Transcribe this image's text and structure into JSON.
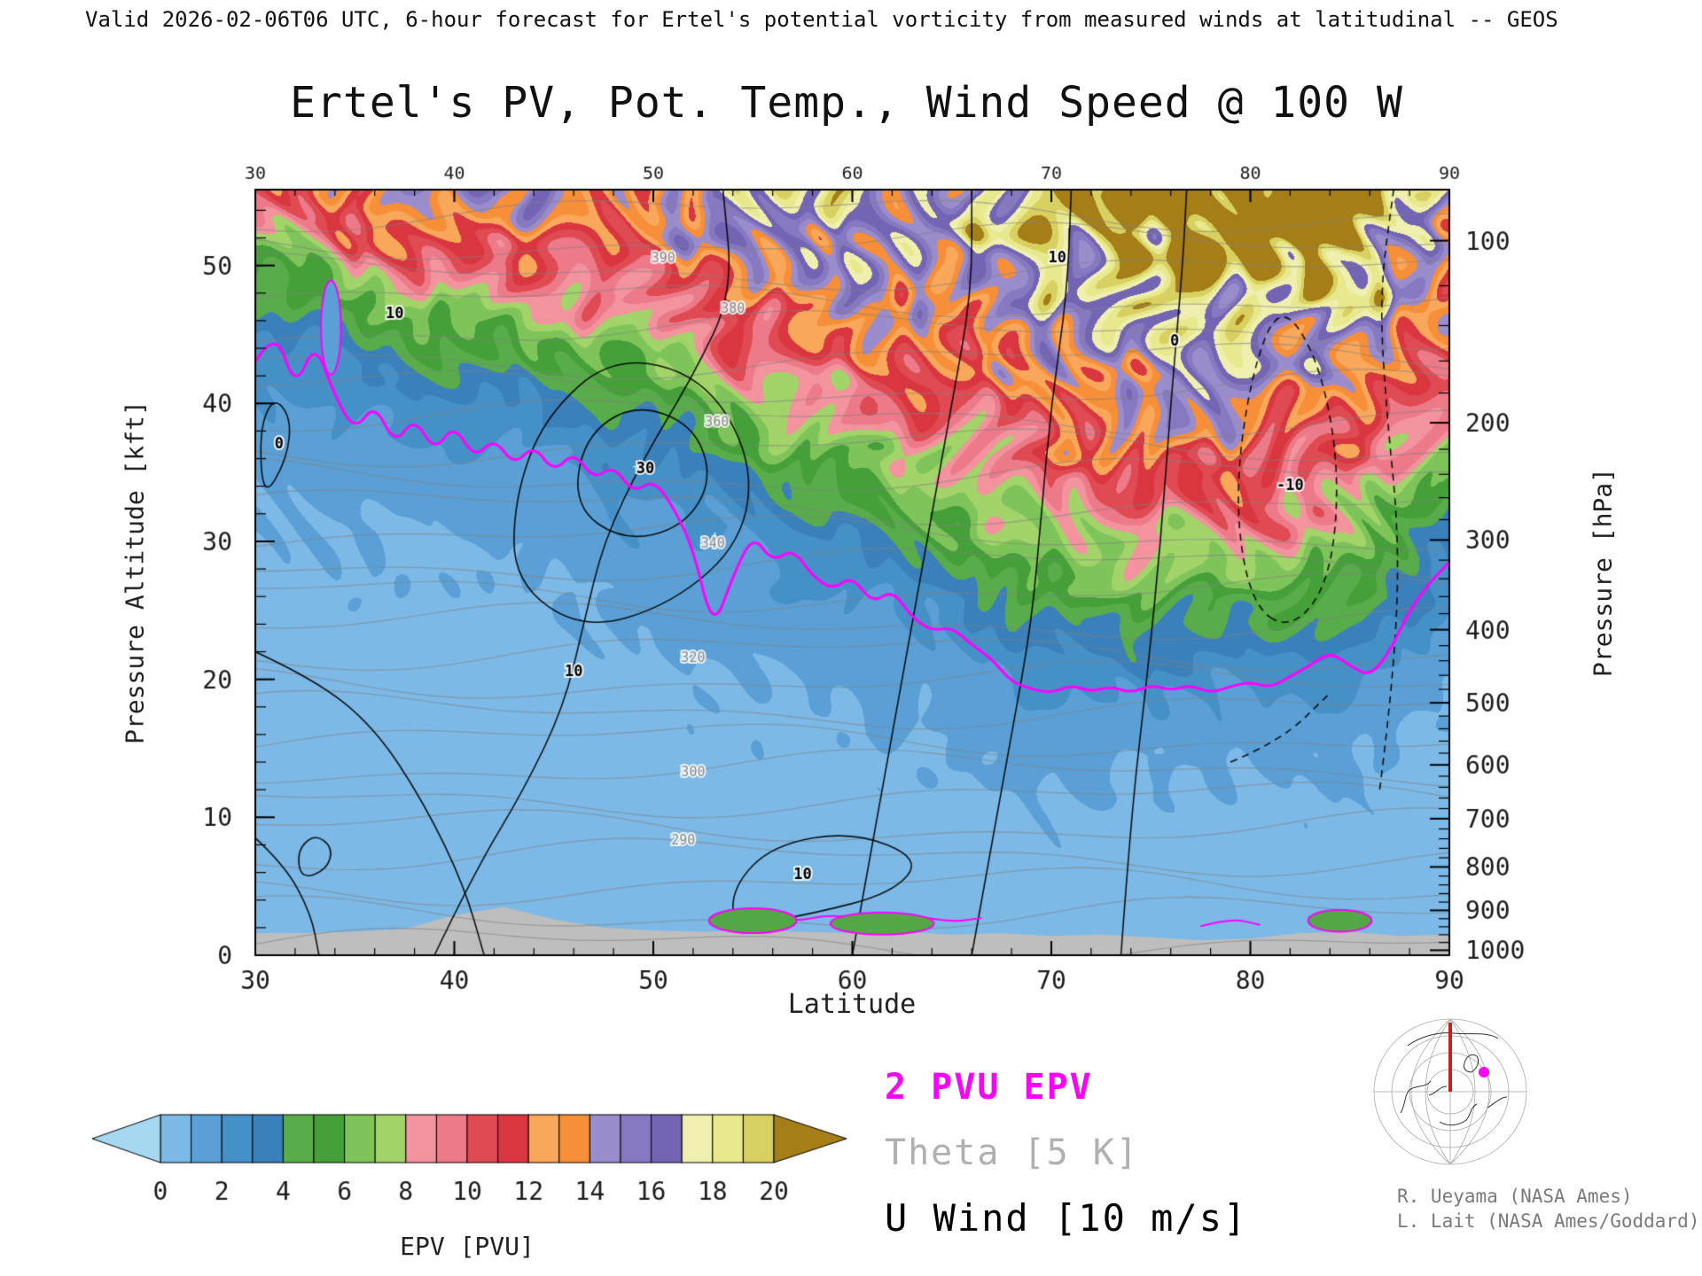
{
  "header": {
    "text": "Valid 2026-02-06T06 UTC, 6-hour forecast for Ertel's potential vorticity from measured winds at latitudinal -- GEOS"
  },
  "legend": {
    "pv_line_label": "2 PVU EPV",
    "theta_label": "Theta [5 K]",
    "uwind_label": "U Wind [10 m/s]",
    "pv_color": "#FF00FF",
    "theta_color": "#B0B0B0",
    "uwind_color": "#000000"
  },
  "map": {
    "credit1": "R. Ueyama (NASA Ames)",
    "credit2": "L. Lait (NASA Ames/Goddard)"
  },
  "chart_data": {
    "type": "heatmap",
    "title": "Ertel's PV, Pot. Temp., Wind Speed @ 100 W",
    "xlabel": "Latitude",
    "ylabel_left": "Pressure Altitude [kft]",
    "ylabel_right": "Pressure [hPa]",
    "epv_units": "PVU",
    "x_range": [
      30,
      90
    ],
    "y_range_kft": [
      0,
      55.5
    ],
    "x_ticks": [
      30,
      40,
      50,
      60,
      70,
      80,
      90
    ],
    "x_minor_step": 2,
    "y_ticks_left_kft": [
      0,
      10,
      20,
      30,
      40,
      50
    ],
    "y_minor_step_kft": 2,
    "pressure_levels": [
      {
        "p": 100,
        "kft": 51.8
      },
      {
        "p": 200,
        "kft": 38.6
      },
      {
        "p": 300,
        "kft": 30.1
      },
      {
        "p": 400,
        "kft": 23.6
      },
      {
        "p": 500,
        "kft": 18.3
      },
      {
        "p": 600,
        "kft": 13.8
      },
      {
        "p": 700,
        "kft": 9.9
      },
      {
        "p": 800,
        "kft": 6.4
      },
      {
        "p": 900,
        "kft": 3.25
      },
      {
        "p": 1000,
        "kft": 0.36
      }
    ],
    "grid_order": "rows = altitude ascending (y_kft), cols = latitude (x_lat)",
    "x_lat": [
      30,
      35,
      40,
      45,
      50,
      55,
      60,
      65,
      70,
      75,
      80,
      85,
      90
    ],
    "y_kft": [
      0,
      5,
      10,
      15,
      20,
      25,
      30,
      35,
      40,
      45,
      50,
      55
    ],
    "epv_grid": [
      [
        0.4,
        0.4,
        0.4,
        0.4,
        0.4,
        0.5,
        0.5,
        0.5,
        0.4,
        0.4,
        0.4,
        0.4,
        0.4
      ],
      [
        0.4,
        0.45,
        0.45,
        0.45,
        0.5,
        0.55,
        0.6,
        0.6,
        0.6,
        0.6,
        0.6,
        0.6,
        0.5
      ],
      [
        0.45,
        0.5,
        0.5,
        0.5,
        0.55,
        0.65,
        0.7,
        0.75,
        0.8,
        0.8,
        0.8,
        0.8,
        0.6
      ],
      [
        0.5,
        0.55,
        0.55,
        0.6,
        0.65,
        0.8,
        0.9,
        1.0,
        1.2,
        1.2,
        1.2,
        1.1,
        0.8
      ],
      [
        0.6,
        0.6,
        0.65,
        0.7,
        0.8,
        1.0,
        1.2,
        1.4,
        2.4,
        2.4,
        2.4,
        2.1,
        1.0
      ],
      [
        0.7,
        0.75,
        0.8,
        0.9,
        1.1,
        1.5,
        1.9,
        2.5,
        4.6,
        4.8,
        4.8,
        4.3,
        1.5
      ],
      [
        0.9,
        0.95,
        1.0,
        1.2,
        1.6,
        2.3,
        3.2,
        4.6,
        7.6,
        8.0,
        8.0,
        7.3,
        2.6
      ],
      [
        1.2,
        1.3,
        1.5,
        1.9,
        2.5,
        4.0,
        5.6,
        7.6,
        10.6,
        11.0,
        11.0,
        10.3,
        5.4
      ],
      [
        1.8,
        2.2,
        2.7,
        3.3,
        4.6,
        7.0,
        8.7,
        10.6,
        13.1,
        13.5,
        13.6,
        13.1,
        9.0
      ],
      [
        3.0,
        4.4,
        5.2,
        6.2,
        8.1,
        10.6,
        12.1,
        13.1,
        15.1,
        15.6,
        16.1,
        16.1,
        11.5
      ],
      [
        5.5,
        8.6,
        9.2,
        10.2,
        12.1,
        13.6,
        14.6,
        15.6,
        17.6,
        18.6,
        20.5,
        21.0,
        13.5
      ],
      [
        11.2,
        13.1,
        13.6,
        14.1,
        15.1,
        16.1,
        16.6,
        17.6,
        20.1,
        22.0,
        24.0,
        24.5,
        15.5
      ]
    ],
    "pv2_color": "#FF00FF",
    "pv2_line": [
      [
        30,
        43
      ],
      [
        31,
        45.5
      ],
      [
        32,
        41
      ],
      [
        33,
        44.5
      ],
      [
        34,
        40.5
      ],
      [
        35,
        38
      ],
      [
        36,
        40
      ],
      [
        37,
        37
      ],
      [
        38,
        39
      ],
      [
        39,
        36.5
      ],
      [
        40,
        38.5
      ],
      [
        41,
        36
      ],
      [
        42,
        37.5
      ],
      [
        43,
        35.5
      ],
      [
        44,
        37
      ],
      [
        45,
        35
      ],
      [
        46,
        36.5
      ],
      [
        47,
        34.5
      ],
      [
        48,
        35.5
      ],
      [
        49,
        33.5
      ],
      [
        50,
        34.5
      ],
      [
        51,
        32.5
      ],
      [
        52,
        29.5
      ],
      [
        53,
        23.5
      ],
      [
        54,
        27.5
      ],
      [
        55,
        30.5
      ],
      [
        56,
        28.5
      ],
      [
        57,
        29.5
      ],
      [
        58,
        27.5
      ],
      [
        59,
        26.5
      ],
      [
        60,
        27.5
      ],
      [
        61,
        25.5
      ],
      [
        62,
        26.5
      ],
      [
        63,
        24.5
      ],
      [
        64,
        23.5
      ],
      [
        65,
        23.8
      ],
      [
        66,
        22.5
      ],
      [
        67,
        21.5
      ],
      [
        68,
        19.8
      ],
      [
        69,
        19.3
      ],
      [
        70,
        19
      ],
      [
        71,
        19.6
      ],
      [
        72,
        19.1
      ],
      [
        73,
        19.5
      ],
      [
        74,
        19
      ],
      [
        75,
        19.6
      ],
      [
        76,
        19.2
      ],
      [
        77,
        19.6
      ],
      [
        78,
        19
      ],
      [
        79,
        19.5
      ],
      [
        80,
        19.8
      ],
      [
        81,
        19.4
      ],
      [
        82,
        20.2
      ],
      [
        83,
        21
      ],
      [
        84,
        22
      ],
      [
        85,
        21
      ],
      [
        86,
        20.2
      ],
      [
        87,
        22
      ],
      [
        88,
        25
      ],
      [
        89,
        27
      ],
      [
        90,
        28.5
      ]
    ],
    "pv2_surface_lines": [
      [
        [
          53,
          2.4
        ],
        [
          55,
          3.0
        ],
        [
          57,
          2.4
        ],
        [
          59,
          3.0
        ],
        [
          61,
          2.4
        ],
        [
          63,
          2.9
        ],
        [
          65,
          2.4
        ],
        [
          66.5,
          2.7
        ]
      ],
      [
        [
          77.5,
          2.1
        ],
        [
          79,
          2.7
        ],
        [
          80.5,
          2.2
        ]
      ],
      [
        [
          83,
          2.3
        ],
        [
          84.5,
          2.9
        ],
        [
          86,
          2.3
        ]
      ]
    ],
    "surface_blobs": [
      {
        "lat": 55,
        "z": 2.5,
        "rlat": 2.2,
        "rz": 0.9,
        "fill": "#52A844"
      },
      {
        "lat": 61.5,
        "z": 2.3,
        "rlat": 2.6,
        "rz": 0.8,
        "fill": "#52A844"
      },
      {
        "lat": 84.5,
        "z": 2.5,
        "rlat": 1.6,
        "rz": 0.8,
        "fill": "#52A844"
      },
      {
        "lat": 33.8,
        "z": 45.5,
        "rlat": 0.5,
        "rz": 3.4,
        "fill": "#5AA0D6"
      }
    ],
    "uwind_contour_interval": "10 m/s, dashed = negative",
    "uwind_contours": [
      {
        "style": "solid",
        "points": [
          [
            30.4,
            33
          ],
          [
            31.6,
            36
          ],
          [
            31.8,
            39
          ],
          [
            30.9,
            40.5
          ],
          [
            30.2,
            38
          ],
          [
            30.4,
            33
          ]
        ]
      },
      {
        "style": "solid",
        "points": [
          [
            32.3,
            5.5
          ],
          [
            33.6,
            6.2
          ],
          [
            33.9,
            7.8
          ],
          [
            33,
            8.8
          ],
          [
            32.1,
            7.6
          ],
          [
            32.3,
            5.5
          ]
        ]
      },
      {
        "style": "solid",
        "points": [
          [
            30,
            8.5
          ],
          [
            31.5,
            6.5
          ],
          [
            32.8,
            3
          ],
          [
            33.2,
            0
          ]
        ]
      },
      {
        "style": "solid",
        "points": [
          [
            30,
            22
          ],
          [
            33,
            20
          ],
          [
            36,
            16.5
          ],
          [
            38.5,
            11
          ],
          [
            40.5,
            5
          ],
          [
            41.5,
            0
          ]
        ]
      },
      {
        "style": "solid",
        "points": [
          [
            39,
            0
          ],
          [
            41,
            6
          ],
          [
            43.5,
            12
          ],
          [
            45.5,
            18
          ],
          [
            46.5,
            24
          ],
          [
            47.5,
            30
          ],
          [
            49.5,
            36
          ],
          [
            52,
            42
          ],
          [
            54,
            48
          ],
          [
            53.5,
            55.5
          ]
        ]
      },
      {
        "style": "solid",
        "points": [
          [
            43,
            27
          ],
          [
            46.5,
            23.5
          ],
          [
            51,
            25.5
          ],
          [
            54.5,
            30
          ],
          [
            55,
            36
          ],
          [
            52.5,
            42
          ],
          [
            48,
            43.5
          ],
          [
            44.5,
            39
          ],
          [
            43,
            33
          ],
          [
            43,
            27
          ]
        ]
      },
      {
        "style": "solid",
        "points": [
          [
            46,
            32.5
          ],
          [
            48.5,
            30
          ],
          [
            51.5,
            31
          ],
          [
            53,
            34.5
          ],
          [
            52,
            38.5
          ],
          [
            49,
            40
          ],
          [
            46.5,
            37.5
          ],
          [
            46,
            32.5
          ]
        ]
      },
      {
        "style": "solid",
        "points": [
          [
            54,
            2
          ],
          [
            58,
            3
          ],
          [
            62,
            4.5
          ],
          [
            63.5,
            7
          ],
          [
            60,
            9
          ],
          [
            56,
            8
          ],
          [
            54,
            5
          ],
          [
            54,
            2
          ]
        ]
      },
      {
        "style": "solid",
        "points": [
          [
            60,
            0
          ],
          [
            61,
            8
          ],
          [
            62,
            16
          ],
          [
            63,
            24
          ],
          [
            64,
            32
          ],
          [
            65,
            40
          ],
          [
            66,
            48
          ],
          [
            66,
            55.5
          ]
        ]
      },
      {
        "style": "solid",
        "points": [
          [
            66,
            0
          ],
          [
            67,
            8
          ],
          [
            68,
            16
          ],
          [
            69,
            24
          ],
          [
            69.5,
            32
          ],
          [
            70,
            40
          ],
          [
            70.8,
            48
          ],
          [
            71,
            55.5
          ]
        ]
      },
      {
        "style": "solid",
        "points": [
          [
            73.5,
            0
          ],
          [
            74,
            10
          ],
          [
            74.8,
            20
          ],
          [
            75.5,
            30
          ],
          [
            76,
            40
          ],
          [
            76.6,
            50
          ],
          [
            76.8,
            55.5
          ]
        ]
      },
      {
        "style": "dashed",
        "points": [
          [
            80,
            25.5
          ],
          [
            82,
            23.5
          ],
          [
            84,
            27
          ],
          [
            84.5,
            35
          ],
          [
            83.5,
            43
          ],
          [
            81.5,
            47.5
          ],
          [
            80,
            42
          ],
          [
            79.2,
            33
          ],
          [
            80,
            25.5
          ]
        ]
      },
      {
        "style": "dashed",
        "points": [
          [
            86.5,
            12
          ],
          [
            87.2,
            20
          ],
          [
            87.5,
            30
          ],
          [
            86.8,
            40
          ],
          [
            86.5,
            48
          ],
          [
            87.2,
            55.5
          ]
        ]
      },
      {
        "style": "dashed",
        "points": [
          [
            79,
            14
          ],
          [
            81.5,
            15.5
          ],
          [
            84,
            19
          ]
        ]
      }
    ],
    "uwind_labels": [
      [
        31.2,
        37,
        "0"
      ],
      [
        37,
        46.5,
        "10"
      ],
      [
        46,
        20.5,
        "10"
      ],
      [
        49.6,
        35.2,
        "30"
      ],
      [
        57.5,
        5.8,
        "10"
      ],
      [
        70.3,
        50.5,
        "10"
      ],
      [
        76.2,
        44.5,
        "0"
      ],
      [
        82,
        34,
        "-10"
      ]
    ],
    "theta_contour_interval": "5 K",
    "theta_labels": [
      [
        51.5,
        8.3,
        "290"
      ],
      [
        52,
        13.2,
        "300"
      ],
      [
        52,
        21.5,
        "320"
      ],
      [
        53,
        29.8,
        "340"
      ],
      [
        53.2,
        38.6,
        "360"
      ],
      [
        54,
        46.8,
        "380"
      ],
      [
        50.5,
        50.5,
        "390"
      ]
    ],
    "terrain": {
      "color": "#BEBEBE",
      "lats": [
        30,
        32.5,
        35,
        37.5,
        40,
        42.5,
        45,
        47.5,
        50,
        52.5,
        55,
        57.5,
        60,
        62.5,
        65,
        67.5,
        70,
        72.5,
        75,
        77.5,
        80,
        82.5,
        85,
        87.5,
        90
      ],
      "heights_kft": [
        1.6,
        1.6,
        1.7,
        1.9,
        2.9,
        3.5,
        2.6,
        2.0,
        1.8,
        1.7,
        1.8,
        1.7,
        1.6,
        1.7,
        1.5,
        1.6,
        1.4,
        1.5,
        1.3,
        1.1,
        1.2,
        1.6,
        1.7,
        1.4,
        1.5
      ]
    },
    "colorbar": {
      "title": "EPV [PVU]",
      "ticks": [
        0,
        2,
        4,
        6,
        8,
        10,
        12,
        14,
        16,
        18,
        20
      ],
      "under_color": "#A6D8F2",
      "over_color": "#A57E18",
      "palette_1pvu": [
        "#7CB9E6",
        "#5AA0D6",
        "#4690C8",
        "#3A80BA",
        "#58AC4A",
        "#46A03A",
        "#7EC45A",
        "#A2D46A",
        "#F2939E",
        "#EC7A88",
        "#E04A52",
        "#D93640",
        "#F9A75A",
        "#F78F38",
        "#9B8CCC",
        "#8878C2",
        "#7464B4",
        "#EFEFAF",
        "#E8E88C",
        "#D8D060"
      ]
    }
  }
}
